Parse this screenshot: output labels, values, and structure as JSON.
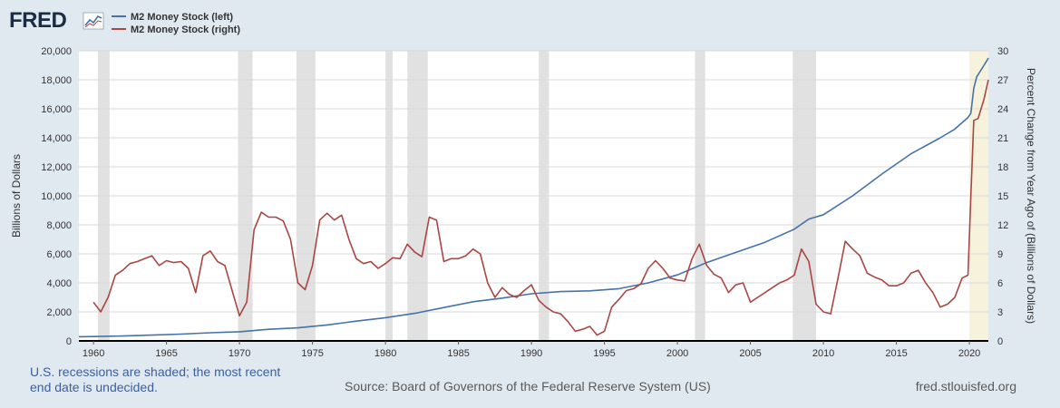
{
  "branding": {
    "logo_text": "FRED"
  },
  "footer": {
    "recession_note": "U.S. recessions are shaded; the most recent end date is undecided.",
    "source": "Source: Board of Governors of the Federal Reserve System (US)",
    "website": "fred.stlouisfed.org"
  },
  "colors": {
    "blue": "#4572a7",
    "red": "#aa4643",
    "recession": "#e1e1e1",
    "recent_recession": "#f6f2dc",
    "background": "#e1e9f0"
  },
  "chart_data": {
    "type": "line",
    "title": "",
    "ylabel_left": "Billions of Dollars",
    "ylabel_right": "Percent Change from Year Ago of (Billions of Dollars)",
    "xlim": [
      1959,
      2021.3
    ],
    "ylim_left": [
      0,
      20000
    ],
    "ylim_right": [
      0,
      30
    ],
    "x_ticks": [
      1960,
      1965,
      1970,
      1975,
      1980,
      1985,
      1990,
      1995,
      2000,
      2005,
      2010,
      2015,
      2020
    ],
    "y_ticks_left": [
      0,
      2000,
      4000,
      6000,
      8000,
      10000,
      12000,
      14000,
      16000,
      18000,
      20000
    ],
    "y_tick_labels_left": [
      "0",
      "2,000",
      "4,000",
      "6,000",
      "8,000",
      "10,000",
      "12,000",
      "14,000",
      "16,000",
      "18,000",
      "20,000"
    ],
    "y_ticks_right": [
      0,
      3,
      6,
      9,
      12,
      15,
      18,
      21,
      24,
      27,
      30
    ],
    "grid": true,
    "legend_position": "top-left",
    "recessions": [
      [
        1960.3,
        1961.1
      ],
      [
        1969.9,
        1970.9
      ],
      [
        1973.9,
        1975.2
      ],
      [
        1980.0,
        1980.5
      ],
      [
        1981.5,
        1982.9
      ],
      [
        1990.5,
        1991.2
      ],
      [
        2001.2,
        2001.9
      ],
      [
        2007.9,
        2009.5
      ],
      [
        2020.0,
        2021.3
      ]
    ],
    "series": [
      {
        "name": "M2 Money Stock (left)",
        "axis": "left",
        "color": "#4572a7",
        "x": [
          1959,
          1960,
          1962,
          1964,
          1966,
          1968,
          1970,
          1972,
          1974,
          1976,
          1978,
          1980,
          1982,
          1984,
          1986,
          1988,
          1990,
          1992,
          1994,
          1996,
          1998,
          2000,
          2002,
          2004,
          2006,
          2008,
          2009,
          2010,
          2012,
          2014,
          2016,
          2018,
          2019,
          2019.9,
          2020.1,
          2020.3,
          2020.5,
          2021.0,
          2021.3
        ],
        "values": [
          290,
          300,
          340,
          400,
          470,
          560,
          630,
          800,
          900,
          1100,
          1360,
          1600,
          1900,
          2300,
          2700,
          2950,
          3250,
          3400,
          3450,
          3600,
          4000,
          4550,
          5400,
          6100,
          6800,
          7700,
          8400,
          8700,
          10000,
          11500,
          12900,
          14000,
          14600,
          15400,
          15700,
          17400,
          18200,
          19000,
          19500
        ]
      },
      {
        "name": "M2 Money Stock (right)",
        "axis": "right",
        "color": "#aa4643",
        "x": [
          1960.0,
          1960.5,
          1961.0,
          1961.5,
          1962.0,
          1962.5,
          1963.0,
          1963.5,
          1964.0,
          1964.5,
          1965.0,
          1965.5,
          1966.0,
          1966.5,
          1967.0,
          1967.5,
          1968.0,
          1968.5,
          1969.0,
          1969.5,
          1970.0,
          1970.5,
          1971.0,
          1971.5,
          1972.0,
          1972.5,
          1973.0,
          1973.5,
          1974.0,
          1974.5,
          1975.0,
          1975.5,
          1976.0,
          1976.5,
          1977.0,
          1977.5,
          1978.0,
          1978.5,
          1979.0,
          1979.5,
          1980.0,
          1980.5,
          1981.0,
          1981.5,
          1982.0,
          1982.5,
          1983.0,
          1983.5,
          1984.0,
          1984.5,
          1985.0,
          1985.5,
          1986.0,
          1986.5,
          1987.0,
          1987.5,
          1988.0,
          1988.5,
          1989.0,
          1989.5,
          1990.0,
          1990.5,
          1991.0,
          1991.5,
          1992.0,
          1992.5,
          1993.0,
          1993.5,
          1994.0,
          1994.5,
          1995.0,
          1995.5,
          1996.0,
          1996.5,
          1997.0,
          1997.5,
          1998.0,
          1998.5,
          1999.0,
          1999.5,
          2000.0,
          2000.5,
          2001.0,
          2001.5,
          2002.0,
          2002.5,
          2003.0,
          2003.5,
          2004.0,
          2004.5,
          2005.0,
          2005.5,
          2006.0,
          2006.5,
          2007.0,
          2007.5,
          2008.0,
          2008.5,
          2009.0,
          2009.5,
          2010.0,
          2010.5,
          2011.0,
          2011.5,
          2012.0,
          2012.5,
          2013.0,
          2013.5,
          2014.0,
          2014.5,
          2015.0,
          2015.5,
          2016.0,
          2016.5,
          2017.0,
          2017.5,
          2018.0,
          2018.5,
          2019.0,
          2019.5,
          2019.9,
          2020.1,
          2020.3,
          2020.6,
          2021.0,
          2021.3
        ],
        "values": [
          4,
          3,
          4.5,
          6.8,
          7.3,
          8.0,
          8.2,
          8.5,
          8.8,
          7.8,
          8.3,
          8.1,
          8.2,
          7.5,
          5.0,
          8.8,
          9.3,
          8.2,
          7.8,
          5.2,
          2.6,
          4.0,
          11.5,
          13.3,
          12.8,
          12.8,
          12.4,
          10.5,
          6.0,
          5.3,
          7.8,
          12.5,
          13.2,
          12.5,
          13.0,
          10.5,
          8.5,
          8.0,
          8.2,
          7.5,
          8.0,
          8.6,
          8.5,
          10.0,
          9.2,
          8.7,
          12.8,
          12.5,
          8.2,
          8.5,
          8.5,
          8.8,
          9.5,
          9.0,
          6.0,
          4.5,
          5.5,
          4.8,
          4.5,
          5.2,
          5.8,
          4.2,
          3.5,
          3.0,
          2.8,
          2.0,
          1.0,
          1.2,
          1.5,
          0.6,
          1.0,
          3.5,
          4.3,
          5.2,
          5.4,
          5.9,
          7.5,
          8.3,
          7.5,
          6.5,
          6.3,
          6.2,
          8.5,
          10.0,
          7.8,
          6.9,
          6.5,
          5.0,
          5.8,
          6.0,
          4.0,
          4.5,
          5.0,
          5.5,
          6.0,
          6.3,
          6.8,
          9.5,
          8.2,
          3.8,
          3.0,
          2.8,
          6.5,
          10.3,
          9.5,
          8.8,
          7.0,
          6.6,
          6.3,
          5.7,
          5.7,
          6.0,
          7.0,
          7.3,
          6.0,
          5.0,
          3.5,
          3.8,
          4.5,
          6.5,
          6.8,
          15.0,
          22.8,
          23.0,
          25.0,
          27.0
        ]
      }
    ]
  }
}
